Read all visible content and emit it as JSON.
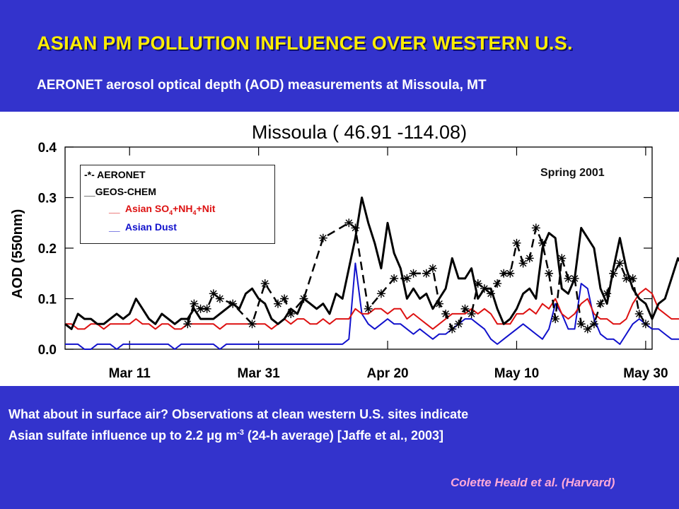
{
  "slide": {
    "title": "ASIAN PM POLLUTION INFLUENCE OVER WESTERN U.S.",
    "subtitle": "AERONET aerosol optical depth (AOD) measurements at Missoula, MT",
    "season_label": "Spring 2001",
    "footer_line1": "What about in surface air? Observations at clean western U.S. sites indicate",
    "footer_line2_pre": "Asian sulfate influence up to 2.2 ",
    "footer_mu": "μ",
    "footer_g": "g m",
    "footer_exp": "-3",
    "footer_line2_post": " (24-h average) [Jaffe et al., 2003]",
    "credit": "Colette Heald et al. (Harvard)"
  },
  "legend": {
    "aeronet_marker": "-*-",
    "aeronet": "AERONET",
    "geos_marker": "__",
    "geos": "GEOS-CHEM",
    "asian_so4_marker": "__",
    "asian_so4_a": "Asian SO",
    "asian_so4_sub1": "4",
    "asian_so4_b": "+NH",
    "asian_so4_sub2": "4",
    "asian_so4_c": "+Nit",
    "asian_dust_marker": "__",
    "asian_dust": "Asian Dust"
  },
  "colors": {
    "background": "#3333cc",
    "title": "#ffee00",
    "aeronet": "#000000",
    "geos_chem": "#000000",
    "asian_so4": "#dd1111",
    "asian_dust": "#1111cc",
    "credit": "#ffaad8"
  },
  "chart_data": {
    "type": "line",
    "title": "Missoula ( 46.91 -114.08)",
    "xlabel": "",
    "ylabel": "AOD (550nm)",
    "xlim": [
      "Mar 1",
      "May 31"
    ],
    "ylim": [
      0.0,
      0.4
    ],
    "x_tick_labels": [
      "Mar 11",
      "Mar 31",
      "Apr 20",
      "May 10",
      "May 30"
    ],
    "x_tick_dates": [
      "2001-03-11",
      "2001-03-31",
      "2001-04-20",
      "2001-05-10",
      "2001-05-30"
    ],
    "y_tick_labels": [
      "0.0",
      "0.1",
      "0.2",
      "0.3",
      "0.4"
    ],
    "y_ticks": [
      0.0,
      0.1,
      0.2,
      0.3,
      0.4
    ],
    "series": [
      {
        "name": "AERONET",
        "style": "dashed-star",
        "dates": [
          "2001-03-20",
          "2001-03-21",
          "2001-03-22",
          "2001-03-23",
          "2001-03-24",
          "2001-03-25",
          "2001-03-27",
          "2001-03-30",
          "2001-04-01",
          "2001-04-03",
          "2001-04-04",
          "2001-04-05",
          "2001-04-07",
          "2001-04-10",
          "2001-04-14",
          "2001-04-15",
          "2001-04-17",
          "2001-04-19",
          "2001-04-21",
          "2001-04-23",
          "2001-04-24",
          "2001-04-26",
          "2001-04-27",
          "2001-04-28",
          "2001-04-29",
          "2001-04-30",
          "2001-05-01",
          "2001-05-02",
          "2001-05-03",
          "2001-05-04",
          "2001-05-05",
          "2001-05-06",
          "2001-05-07",
          "2001-05-08",
          "2001-05-09",
          "2001-05-10",
          "2001-05-11",
          "2001-05-12",
          "2001-05-13",
          "2001-05-14",
          "2001-05-15",
          "2001-05-16",
          "2001-05-17",
          "2001-05-18",
          "2001-05-19",
          "2001-05-20",
          "2001-05-21",
          "2001-05-22",
          "2001-05-23",
          "2001-05-24",
          "2001-05-25",
          "2001-05-26",
          "2001-05-27",
          "2001-05-28",
          "2001-05-29",
          "2001-05-30"
        ],
        "values": [
          0.05,
          0.09,
          0.08,
          0.08,
          0.11,
          0.1,
          0.09,
          0.05,
          0.13,
          0.09,
          0.1,
          0.07,
          0.1,
          0.22,
          0.25,
          0.24,
          0.08,
          0.11,
          0.14,
          0.14,
          0.15,
          0.15,
          0.16,
          0.09,
          0.07,
          0.04,
          0.05,
          0.08,
          0.07,
          0.13,
          0.12,
          0.11,
          0.13,
          0.15,
          0.15,
          0.21,
          0.17,
          0.18,
          0.24,
          0.21,
          0.15,
          0.06,
          0.18,
          0.14,
          0.14,
          0.05,
          0.04,
          0.05,
          0.09,
          0.11,
          0.15,
          0.17,
          0.14,
          0.14,
          0.07,
          0.05
        ]
      },
      {
        "name": "GEOS-CHEM",
        "style": "solid",
        "start_date": "2001-03-01",
        "values": [
          0.05,
          0.04,
          0.07,
          0.06,
          0.06,
          0.05,
          0.05,
          0.06,
          0.07,
          0.06,
          0.07,
          0.1,
          0.08,
          0.06,
          0.05,
          0.07,
          0.06,
          0.05,
          0.06,
          0.06,
          0.08,
          0.06,
          0.06,
          0.06,
          0.07,
          0.08,
          0.09,
          0.08,
          0.11,
          0.12,
          0.1,
          0.09,
          0.06,
          0.05,
          0.06,
          0.08,
          0.07,
          0.1,
          0.09,
          0.08,
          0.09,
          0.07,
          0.11,
          0.1,
          0.16,
          0.22,
          0.3,
          0.25,
          0.21,
          0.16,
          0.25,
          0.19,
          0.16,
          0.1,
          0.12,
          0.1,
          0.11,
          0.08,
          0.1,
          0.12,
          0.18,
          0.14,
          0.14,
          0.16,
          0.1,
          0.12,
          0.12,
          0.08,
          0.05,
          0.06,
          0.08,
          0.11,
          0.12,
          0.1,
          0.2,
          0.23,
          0.22,
          0.12,
          0.11,
          0.14,
          0.24,
          0.22,
          0.2,
          0.12,
          0.09,
          0.16,
          0.22,
          0.16,
          0.12,
          0.1,
          0.09,
          0.06,
          0.09,
          0.1,
          0.14,
          0.18,
          0.16,
          0.13,
          0.1,
          0.05,
          0.1
        ]
      },
      {
        "name": "Asian SO4+NH4+Nit",
        "style": "solid",
        "start_date": "2001-03-01",
        "values": [
          0.05,
          0.05,
          0.04,
          0.04,
          0.05,
          0.05,
          0.04,
          0.05,
          0.05,
          0.05,
          0.05,
          0.06,
          0.05,
          0.05,
          0.04,
          0.05,
          0.05,
          0.04,
          0.04,
          0.05,
          0.05,
          0.05,
          0.05,
          0.05,
          0.04,
          0.05,
          0.05,
          0.05,
          0.05,
          0.05,
          0.05,
          0.05,
          0.04,
          0.05,
          0.06,
          0.05,
          0.06,
          0.06,
          0.05,
          0.05,
          0.06,
          0.05,
          0.06,
          0.06,
          0.06,
          0.08,
          0.07,
          0.07,
          0.08,
          0.08,
          0.07,
          0.08,
          0.08,
          0.06,
          0.07,
          0.06,
          0.05,
          0.04,
          0.05,
          0.06,
          0.07,
          0.07,
          0.07,
          0.08,
          0.07,
          0.08,
          0.07,
          0.05,
          0.05,
          0.05,
          0.07,
          0.07,
          0.08,
          0.07,
          0.09,
          0.08,
          0.1,
          0.07,
          0.06,
          0.07,
          0.09,
          0.1,
          0.07,
          0.06,
          0.06,
          0.05,
          0.05,
          0.06,
          0.09,
          0.11,
          0.12,
          0.11,
          0.08,
          0.07,
          0.06,
          0.06,
          0.06,
          0.05,
          0.05,
          0.04,
          0.03
        ]
      },
      {
        "name": "Asian Dust",
        "style": "solid",
        "start_date": "2001-03-01",
        "values": [
          0.01,
          0.01,
          0.01,
          0.0,
          0.0,
          0.01,
          0.01,
          0.01,
          0.0,
          0.01,
          0.01,
          0.01,
          0.01,
          0.01,
          0.01,
          0.01,
          0.01,
          0.0,
          0.01,
          0.01,
          0.01,
          0.01,
          0.01,
          0.01,
          0.0,
          0.01,
          0.01,
          0.01,
          0.01,
          0.01,
          0.01,
          0.01,
          0.01,
          0.01,
          0.01,
          0.01,
          0.01,
          0.01,
          0.01,
          0.01,
          0.01,
          0.01,
          0.01,
          0.01,
          0.02,
          0.17,
          0.07,
          0.05,
          0.04,
          0.05,
          0.06,
          0.05,
          0.05,
          0.04,
          0.03,
          0.04,
          0.03,
          0.02,
          0.03,
          0.03,
          0.04,
          0.05,
          0.06,
          0.06,
          0.05,
          0.04,
          0.02,
          0.01,
          0.02,
          0.03,
          0.04,
          0.05,
          0.04,
          0.03,
          0.02,
          0.04,
          0.09,
          0.07,
          0.04,
          0.04,
          0.13,
          0.12,
          0.06,
          0.03,
          0.02,
          0.02,
          0.01,
          0.03,
          0.05,
          0.06,
          0.05,
          0.04,
          0.04,
          0.03,
          0.02,
          0.02,
          0.02,
          0.03,
          0.04,
          0.01,
          0.0
        ]
      }
    ]
  }
}
